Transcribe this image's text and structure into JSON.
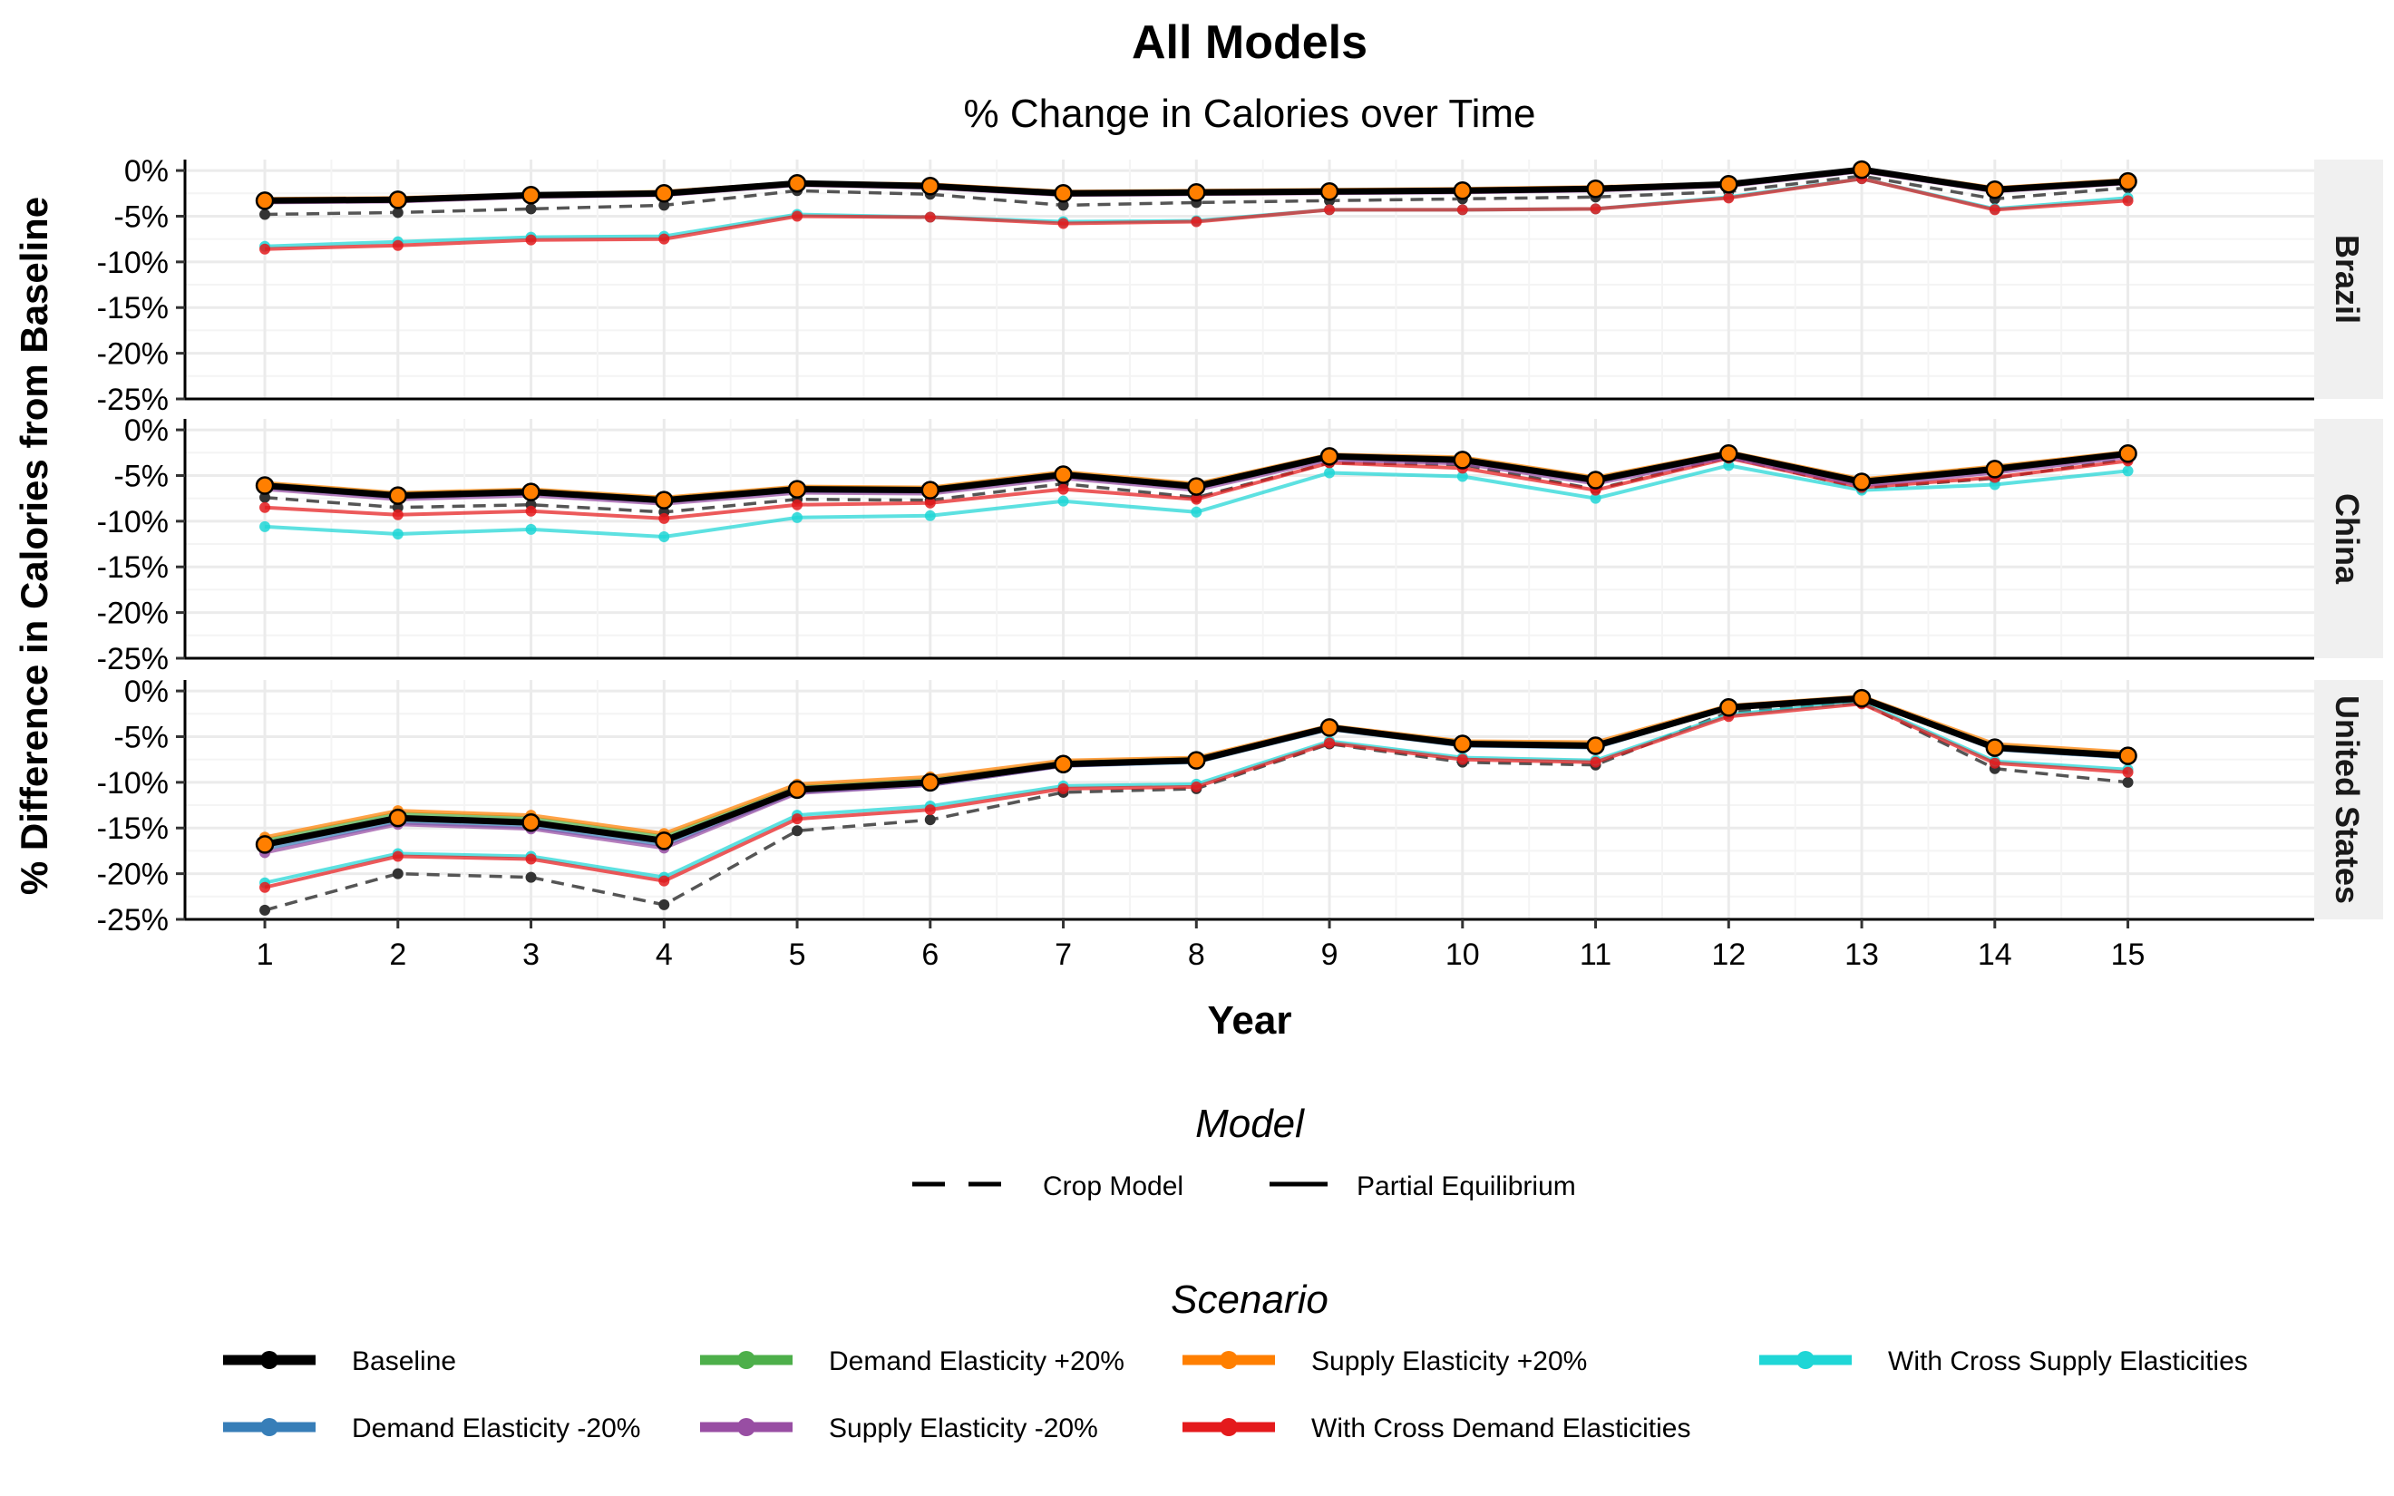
{
  "chart_data": {
    "type": "line",
    "title": "All Models",
    "subtitle": "% Change in Calories over Time",
    "xlabel": "Year",
    "ylabel": "% Difference in Calories from Baseline",
    "x": [
      1,
      2,
      3,
      4,
      5,
      6,
      7,
      8,
      9,
      10,
      11,
      12,
      13,
      14,
      15
    ],
    "x_ticks": [
      "1",
      "2",
      "3",
      "4",
      "5",
      "6",
      "7",
      "8",
      "9",
      "10",
      "11",
      "12",
      "13",
      "14",
      "15"
    ],
    "xlim": [
      0.4,
      16.4
    ],
    "ylim": [
      -25,
      1.2
    ],
    "y_ticks": [
      0,
      -5,
      -10,
      -15,
      -20,
      -25
    ],
    "y_tick_labels": [
      "0%",
      "-5%",
      "-10%",
      "-15%",
      "-20%",
      "-25%"
    ],
    "grid": true,
    "legend_position": "bottom",
    "model_legend": {
      "title": "Model",
      "items": [
        {
          "label": "Crop Model",
          "dash": "dashed"
        },
        {
          "label": "Partial Equilibrium",
          "dash": "solid"
        }
      ]
    },
    "scenario_legend": {
      "title": "Scenario",
      "items": [
        {
          "label": "Baseline",
          "color": "#000000"
        },
        {
          "label": "Demand Elasticity +20%",
          "color": "#4DAF4A"
        },
        {
          "label": "Supply Elasticity +20%",
          "color": "#FF7F00"
        },
        {
          "label": "With Cross Supply Elasticities",
          "color": "#1FD6D6"
        },
        {
          "label": "Demand Elasticity -20%",
          "color": "#377EB8"
        },
        {
          "label": "Supply Elasticity -20%",
          "color": "#984EA3"
        },
        {
          "label": "With Cross Demand Elasticities",
          "color": "#E41A1C"
        }
      ]
    },
    "panels": [
      {
        "strip": "Brazil",
        "crop_model": [
          -4.8,
          -4.6,
          -4.2,
          -3.8,
          -2.2,
          -2.6,
          -3.8,
          -3.5,
          -3.3,
          -3.1,
          -2.9,
          -2.3,
          -0.6,
          -3.1,
          -1.9
        ],
        "series": [
          {
            "scenario": "Baseline",
            "color": "#000000",
            "values": [
              -3.3,
              -3.2,
              -2.7,
              -2.5,
              -1.4,
              -1.7,
              -2.5,
              -2.4,
              -2.3,
              -2.2,
              -2.0,
              -1.5,
              0.1,
              -2.1,
              -1.2
            ]
          },
          {
            "scenario": "Demand Elasticity -20%",
            "color": "#377EB8",
            "values": [
              -3.4,
              -3.3,
              -2.8,
              -2.6,
              -1.5,
              -1.8,
              -2.6,
              -2.5,
              -2.4,
              -2.3,
              -2.1,
              -1.6,
              0.0,
              -2.2,
              -1.3
            ]
          },
          {
            "scenario": "Demand Elasticity +20%",
            "color": "#4DAF4A",
            "values": [
              -3.2,
              -3.1,
              -2.6,
              -2.4,
              -1.3,
              -1.6,
              -2.4,
              -2.3,
              -2.2,
              -2.1,
              -1.9,
              -1.4,
              0.1,
              -2.0,
              -1.1
            ]
          },
          {
            "scenario": "Supply Elasticity -20%",
            "color": "#984EA3",
            "values": [
              -3.5,
              -3.4,
              -2.9,
              -2.7,
              -1.6,
              -1.9,
              -2.7,
              -2.6,
              -2.5,
              -2.4,
              -2.2,
              -1.7,
              -0.1,
              -2.3,
              -1.4
            ]
          },
          {
            "scenario": "Supply Elasticity +20%",
            "color": "#FF7F00",
            "values": [
              -3.1,
              -3.0,
              -2.6,
              -2.3,
              -1.3,
              -1.5,
              -2.3,
              -2.2,
              -2.1,
              -2.0,
              -1.8,
              -1.4,
              0.2,
              -1.9,
              -1.0
            ]
          },
          {
            "scenario": "With Cross Demand Elasticities",
            "color": "#E41A1C",
            "values": [
              -8.6,
              -8.2,
              -7.6,
              -7.5,
              -5.0,
              -5.1,
              -5.8,
              -5.6,
              -4.3,
              -4.3,
              -4.2,
              -3.0,
              -0.9,
              -4.3,
              -3.3
            ]
          },
          {
            "scenario": "With Cross Supply Elasticities",
            "color": "#1FD6D6",
            "values": [
              -8.3,
              -7.8,
              -7.3,
              -7.2,
              -4.8,
              -5.1,
              -5.6,
              -5.5,
              -4.3,
              -4.3,
              -4.2,
              -2.9,
              -0.9,
              -4.2,
              -3.0
            ]
          }
        ]
      },
      {
        "strip": "China",
        "crop_model": [
          -7.4,
          -8.5,
          -8.2,
          -9.0,
          -7.6,
          -7.7,
          -5.9,
          -7.4,
          -3.6,
          -3.8,
          -6.5,
          -3.0,
          -6.4,
          -5.3,
          -3.2
        ],
        "series": [
          {
            "scenario": "Baseline",
            "color": "#000000",
            "values": [
              -6.1,
              -7.2,
              -6.8,
              -7.7,
              -6.5,
              -6.6,
              -4.9,
              -6.2,
              -2.9,
              -3.3,
              -5.5,
              -2.6,
              -5.7,
              -4.3,
              -2.6
            ]
          },
          {
            "scenario": "Demand Elasticity -20%",
            "color": "#377EB8",
            "values": [
              -6.3,
              -7.4,
              -7.0,
              -7.9,
              -6.7,
              -6.8,
              -5.1,
              -6.4,
              -3.1,
              -3.5,
              -5.7,
              -2.8,
              -5.9,
              -4.5,
              -2.8
            ]
          },
          {
            "scenario": "Demand Elasticity +20%",
            "color": "#4DAF4A",
            "values": [
              -5.9,
              -7.0,
              -6.6,
              -7.5,
              -6.3,
              -6.4,
              -4.7,
              -6.0,
              -2.8,
              -3.1,
              -5.3,
              -2.5,
              -5.5,
              -4.1,
              -2.5
            ]
          },
          {
            "scenario": "Supply Elasticity -20%",
            "color": "#984EA3",
            "values": [
              -6.5,
              -7.6,
              -7.2,
              -8.1,
              -6.9,
              -7.0,
              -5.3,
              -6.6,
              -3.3,
              -3.7,
              -5.9,
              -3.0,
              -6.1,
              -4.7,
              -3.0
            ]
          },
          {
            "scenario": "Supply Elasticity +20%",
            "color": "#FF7F00",
            "values": [
              -5.8,
              -6.9,
              -6.5,
              -7.4,
              -6.2,
              -6.3,
              -4.6,
              -5.9,
              -2.7,
              -3.0,
              -5.2,
              -2.4,
              -5.4,
              -4.0,
              -2.4
            ]
          },
          {
            "scenario": "With Cross Demand Elasticities",
            "color": "#E41A1C",
            "values": [
              -8.5,
              -9.3,
              -8.9,
              -9.7,
              -8.2,
              -8.0,
              -6.5,
              -7.6,
              -3.6,
              -4.2,
              -6.6,
              -3.1,
              -6.3,
              -5.2,
              -3.4
            ]
          },
          {
            "scenario": "With Cross Supply Elasticities",
            "color": "#1FD6D6",
            "values": [
              -10.6,
              -11.4,
              -10.9,
              -11.7,
              -9.6,
              -9.4,
              -7.8,
              -9.0,
              -4.7,
              -5.1,
              -7.5,
              -3.9,
              -6.6,
              -6.0,
              -4.5
            ]
          }
        ]
      },
      {
        "strip": "United States",
        "crop_model": [
          -24.0,
          -20.0,
          -20.4,
          -23.4,
          -15.3,
          -14.1,
          -11.1,
          -10.7,
          -5.8,
          -7.8,
          -8.1,
          -2.3,
          -1.3,
          -8.5,
          -10.0
        ],
        "series": [
          {
            "scenario": "Baseline",
            "color": "#000000",
            "values": [
              -16.8,
              -13.9,
              -14.4,
              -16.4,
              -10.8,
              -10.0,
              -8.0,
              -7.6,
              -4.0,
              -5.8,
              -6.0,
              -1.8,
              -0.8,
              -6.2,
              -7.1
            ]
          },
          {
            "scenario": "Demand Elasticity -20%",
            "color": "#377EB8",
            "values": [
              -17.3,
              -14.4,
              -14.9,
              -16.9,
              -11.1,
              -10.3,
              -8.2,
              -7.8,
              -4.2,
              -6.0,
              -6.2,
              -1.9,
              -0.9,
              -6.4,
              -7.3
            ]
          },
          {
            "scenario": "Demand Elasticity +20%",
            "color": "#4DAF4A",
            "values": [
              -16.3,
              -13.4,
              -13.9,
              -15.9,
              -10.5,
              -9.7,
              -7.8,
              -7.4,
              -3.9,
              -5.6,
              -5.8,
              -1.7,
              -0.7,
              -6.0,
              -6.9
            ]
          },
          {
            "scenario": "Supply Elasticity -20%",
            "color": "#984EA3",
            "values": [
              -17.7,
              -14.6,
              -15.1,
              -17.2,
              -11.2,
              -10.3,
              -8.2,
              -7.7,
              -4.1,
              -5.8,
              -6.0,
              -1.7,
              -0.7,
              -6.2,
              -7.1
            ]
          },
          {
            "scenario": "Supply Elasticity +20%",
            "color": "#FF7F00",
            "values": [
              -16.0,
              -13.1,
              -13.6,
              -15.6,
              -10.2,
              -9.4,
              -7.6,
              -7.3,
              -3.8,
              -5.5,
              -5.6,
              -1.6,
              -0.6,
              -5.8,
              -6.7
            ]
          },
          {
            "scenario": "With Cross Demand Elasticities",
            "color": "#E41A1C",
            "values": [
              -21.5,
              -18.1,
              -18.4,
              -20.8,
              -14.0,
              -13.0,
              -10.7,
              -10.5,
              -5.7,
              -7.5,
              -7.8,
              -2.8,
              -1.4,
              -7.9,
              -8.9
            ]
          },
          {
            "scenario": "With Cross Supply Elasticities",
            "color": "#1FD6D6",
            "values": [
              -21.0,
              -17.8,
              -18.1,
              -20.4,
              -13.6,
              -12.6,
              -10.4,
              -10.2,
              -5.5,
              -7.3,
              -7.6,
              -2.6,
              -1.2,
              -7.7,
              -8.6
            ]
          }
        ]
      }
    ]
  }
}
